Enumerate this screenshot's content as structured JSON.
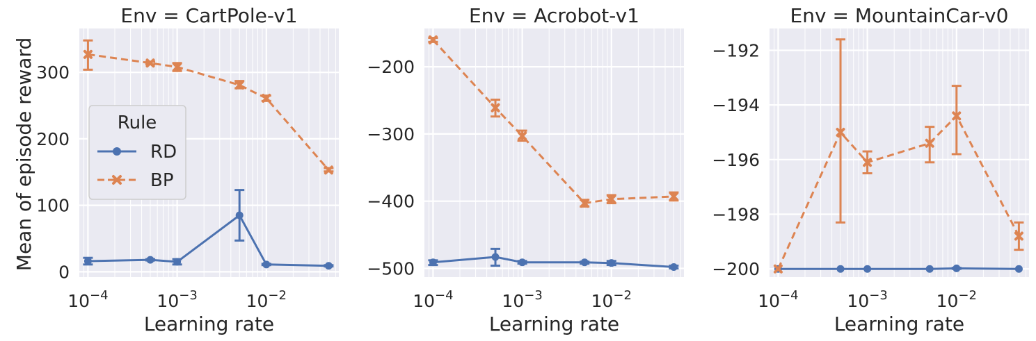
{
  "figure": {
    "ylabel": "Mean of episode reward",
    "xlabel": "Learning rate",
    "legend": {
      "title": "Rule",
      "placement": "center-left of first panel",
      "entries": [
        {
          "name": "RD",
          "color": "#4c72b0",
          "marker": "circle",
          "linestyle": "solid"
        },
        {
          "name": "BP",
          "color": "#dd8452",
          "marker": "x",
          "linestyle": "dashed"
        }
      ]
    },
    "background": "#eaeaf2",
    "grid": true
  },
  "chart_data": [
    {
      "type": "line",
      "title": "Env = CartPole-v1",
      "xlabel": "Learning rate",
      "ylabel": "Mean of episode reward",
      "xscale": "log",
      "x": [
        0.0001,
        0.0005,
        0.001,
        0.005,
        0.01,
        0.05
      ],
      "xlim": [
        8e-05,
        0.065
      ],
      "ylim": [
        -8,
        366
      ],
      "xticks": [
        0.0001,
        0.001,
        0.01
      ],
      "xtick_labels": [
        "10^-4",
        "10^-3",
        "10^-2"
      ],
      "yticks": [
        0,
        100,
        200,
        300
      ],
      "ytick_labels": [
        "0",
        "100",
        "200",
        "300"
      ],
      "series": [
        {
          "name": "RD",
          "values": [
            16,
            18,
            15,
            85,
            11,
            9
          ],
          "err_low": [
            11,
            17,
            11,
            47,
            10,
            8
          ],
          "err_high": [
            21,
            19,
            19,
            123,
            12,
            10
          ]
        },
        {
          "name": "BP",
          "values": [
            327,
            314,
            308,
            281,
            261,
            153
          ],
          "err_low": [
            304,
            312,
            302,
            276,
            257,
            151
          ],
          "err_high": [
            348,
            316,
            314,
            287,
            265,
            156
          ]
        }
      ]
    },
    {
      "type": "line",
      "title": "Env = Acrobot-v1",
      "xlabel": "Learning rate",
      "ylabel": "",
      "xscale": "log",
      "x": [
        0.0001,
        0.0005,
        0.001,
        0.005,
        0.01,
        0.05
      ],
      "xlim": [
        8e-05,
        0.065
      ],
      "ylim": [
        -513,
        -143
      ],
      "xticks": [
        0.0001,
        0.001,
        0.01
      ],
      "xtick_labels": [
        "10^-4",
        "10^-3",
        "10^-2"
      ],
      "yticks": [
        -500,
        -400,
        -300,
        -200
      ],
      "ytick_labels": [
        "−500",
        "−400",
        "−300",
        "−200"
      ],
      "series": [
        {
          "name": "RD",
          "values": [
            -491,
            -483,
            -491,
            -491,
            -492,
            -498
          ],
          "err_low": [
            -495,
            -496,
            -493,
            -493,
            -495,
            -500
          ],
          "err_high": [
            -488,
            -471,
            -489,
            -490,
            -489,
            -496
          ]
        },
        {
          "name": "BP",
          "values": [
            -160,
            -261,
            -303,
            -403,
            -397,
            -393
          ],
          "err_low": [
            -163,
            -274,
            -310,
            -408,
            -403,
            -399
          ],
          "err_high": [
            -157,
            -249,
            -295,
            -398,
            -391,
            -387
          ]
        }
      ]
    },
    {
      "type": "line",
      "title": "Env = MountainCar-v0",
      "xlabel": "Learning rate",
      "ylabel": "",
      "xscale": "log",
      "x": [
        0.0001,
        0.0005,
        0.001,
        0.005,
        0.01,
        0.05
      ],
      "xlim": [
        8e-05,
        0.065
      ],
      "ylim": [
        -200.3,
        -191.2
      ],
      "xticks": [
        0.0001,
        0.001,
        0.01
      ],
      "xtick_labels": [
        "10^-4",
        "10^-3",
        "10^-2"
      ],
      "yticks": [
        -200,
        -198,
        -196,
        -194,
        -192
      ],
      "ytick_labels": [
        "−200",
        "−198",
        "−196",
        "−194",
        "−192"
      ],
      "series": [
        {
          "name": "RD",
          "values": [
            -200,
            -200,
            -200,
            -200,
            -199.98,
            -200
          ],
          "err_low": [
            -200,
            -200,
            -200,
            -200,
            -200,
            -200
          ],
          "err_high": [
            -200,
            -200,
            -200,
            -200,
            -199.96,
            -200
          ]
        },
        {
          "name": "BP",
          "values": [
            -200,
            -195,
            -196.1,
            -195.4,
            -194.4,
            -198.8
          ],
          "err_low": [
            -200,
            -198.3,
            -196.5,
            -196.1,
            -195.8,
            -199.3
          ],
          "err_high": [
            -200,
            -191.6,
            -195.7,
            -194.8,
            -193.3,
            -198.3
          ]
        }
      ]
    }
  ]
}
